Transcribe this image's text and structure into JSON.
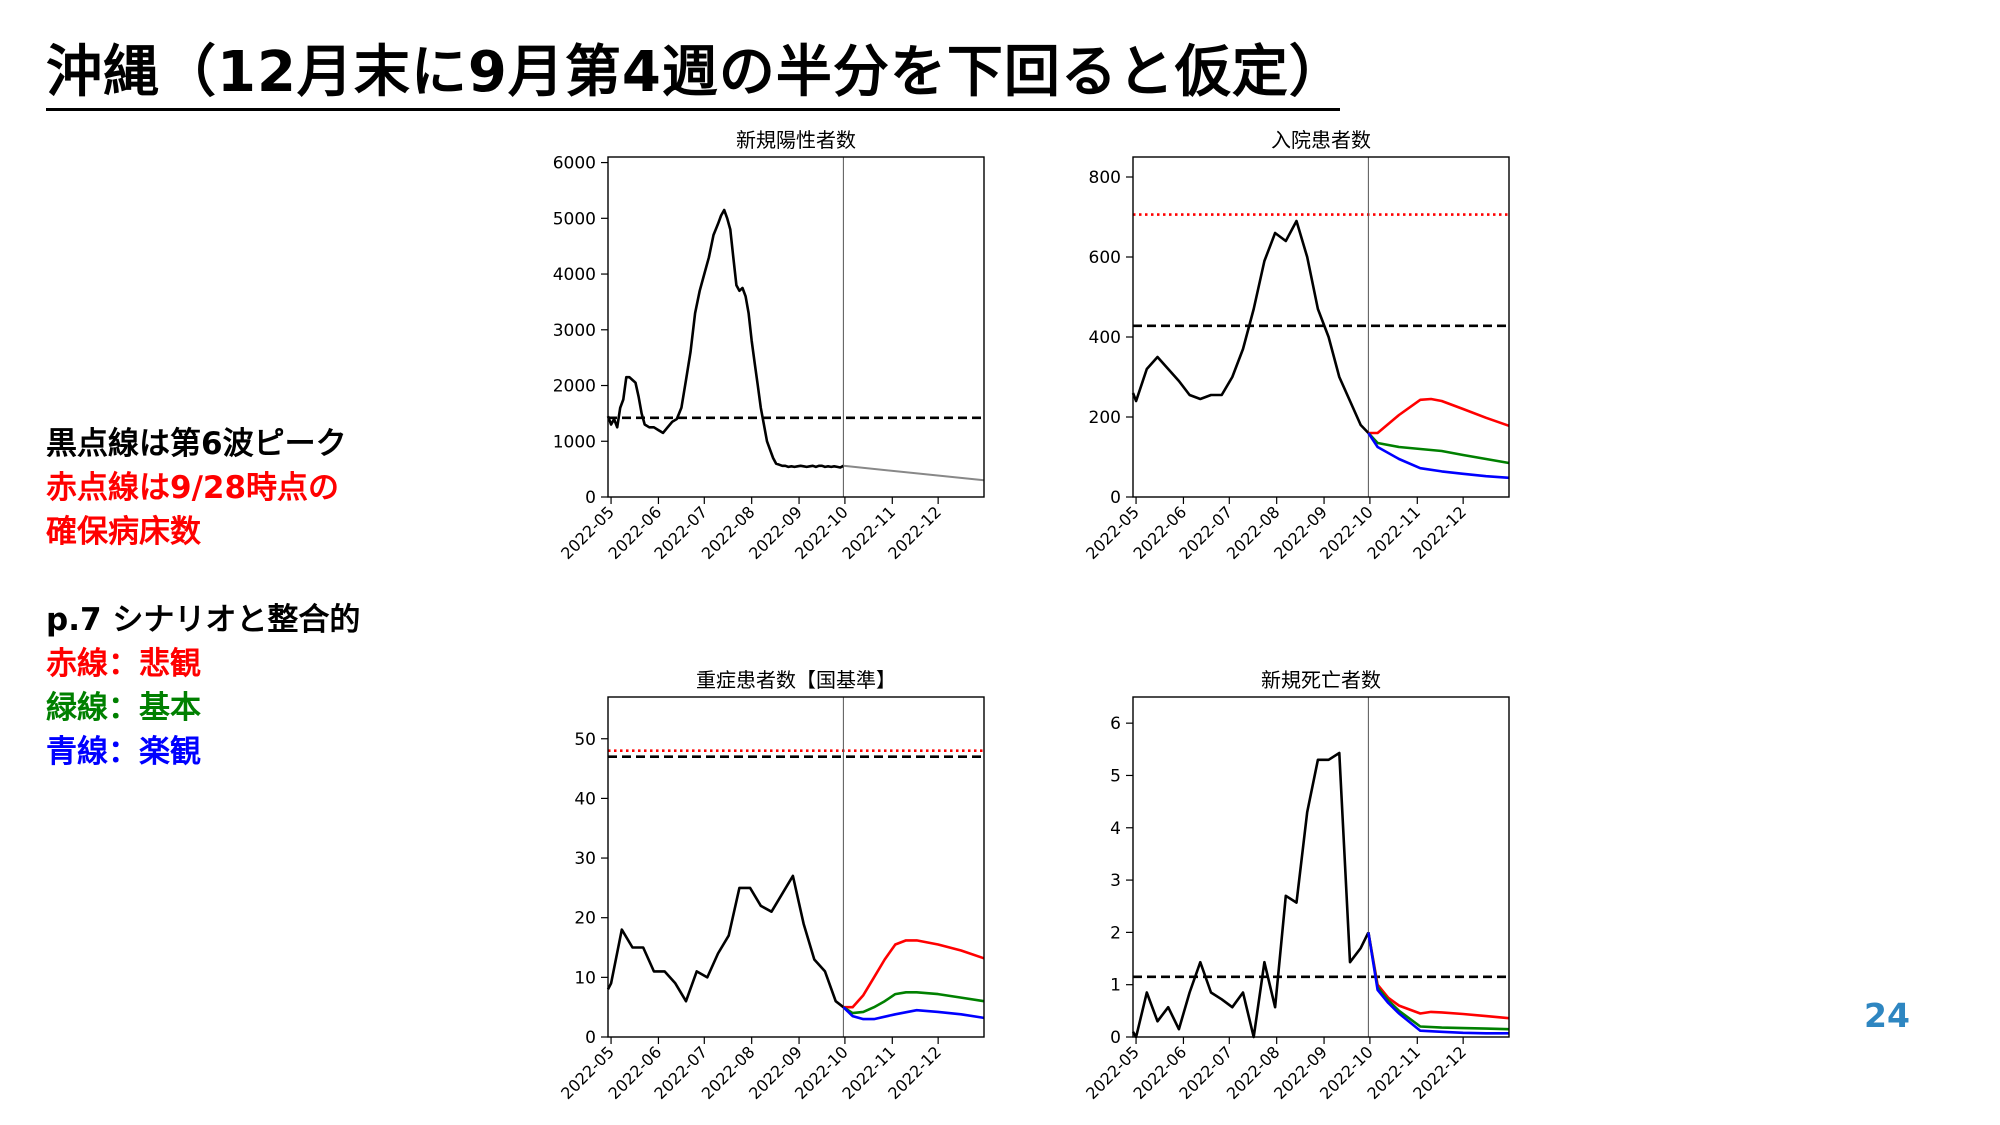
{
  "title": "沖縄（12月末に9月第4週の半分を下回ると仮定）",
  "notes": [
    {
      "text": "黒点線は第6波ピーク",
      "color": "#000000"
    },
    {
      "text": "赤点線は9/28時点の",
      "color": "#ff0000"
    },
    {
      "text": "確保病床数",
      "color": "#ff0000"
    },
    {
      "text": "p.7 シナリオと整合的",
      "color": "#000000"
    },
    {
      "text": "赤線：悲観",
      "color": "#ff0000"
    },
    {
      "text": "緑線：基本",
      "color": "#008000"
    },
    {
      "text": "青線：楽観",
      "color": "#0000ff"
    }
  ],
  "page_number": "24",
  "colors": {
    "observed": "#000000",
    "projection": "#888888",
    "pessimistic": "#ff0000",
    "base": "#008000",
    "optimistic": "#0000ff",
    "threshold_peak": "#000000",
    "threshold_beds": "#ff0000"
  },
  "chart_data": [
    {
      "type": "line",
      "title": "新規陽性者数",
      "x_tick_labels": [
        "2022-05",
        "2022-06",
        "2022-07",
        "2022-08",
        "2022-09",
        "2022-10",
        "2022-11",
        "2022-12"
      ],
      "x_ticks": [
        0,
        31,
        61,
        92,
        123,
        153,
        184,
        214
      ],
      "xlim": [
        -2,
        244
      ],
      "ylim": [
        0,
        6100
      ],
      "y_ticks": [
        0,
        1000,
        2000,
        3000,
        4000,
        5000,
        6000
      ],
      "vline_x": 152,
      "hlines": [
        {
          "name": "第6波ピーク",
          "y": 1420,
          "style": "dashed",
          "color": "#000000"
        }
      ],
      "series": [
        {
          "role": "observed",
          "x": [
            -2,
            0,
            2,
            4,
            6,
            8,
            10,
            12,
            14,
            16,
            18,
            20,
            22,
            25,
            28,
            31,
            34,
            37,
            40,
            43,
            46,
            49,
            52,
            55,
            58,
            61,
            64,
            67,
            70,
            72,
            74,
            76,
            78,
            80,
            82,
            84,
            86,
            88,
            90,
            92,
            94,
            96,
            98,
            100,
            102,
            104,
            106,
            108,
            110,
            112,
            114,
            116,
            118,
            120,
            122,
            124,
            126,
            128,
            130,
            132,
            134,
            136,
            138,
            140,
            142,
            144,
            146,
            148,
            150,
            152
          ],
          "y": [
            1450,
            1300,
            1400,
            1250,
            1600,
            1750,
            2150,
            2150,
            2100,
            2050,
            1800,
            1500,
            1300,
            1250,
            1250,
            1200,
            1150,
            1250,
            1350,
            1400,
            1600,
            2100,
            2600,
            3300,
            3700,
            4000,
            4300,
            4700,
            4900,
            5050,
            5150,
            5000,
            4800,
            4300,
            3800,
            3700,
            3750,
            3600,
            3300,
            2800,
            2400,
            2000,
            1600,
            1300,
            1000,
            850,
            700,
            600,
            580,
            560,
            560,
            540,
            550,
            540,
            550,
            560,
            550,
            540,
            550,
            560,
            540,
            560,
            560,
            540,
            550,
            540,
            550,
            540,
            530,
            560
          ]
        },
        {
          "role": "projection",
          "x": [
            152,
            244
          ],
          "y": [
            560,
            300
          ]
        }
      ]
    },
    {
      "type": "line",
      "title": "入院患者数",
      "x_tick_labels": [
        "2022-05",
        "2022-06",
        "2022-07",
        "2022-08",
        "2022-09",
        "2022-10",
        "2022-11",
        "2022-12"
      ],
      "x_ticks": [
        0,
        31,
        61,
        92,
        123,
        153,
        184,
        214
      ],
      "xlim": [
        -2,
        244
      ],
      "ylim": [
        0,
        850
      ],
      "y_ticks": [
        0,
        200,
        400,
        600,
        800
      ],
      "vline_x": 152,
      "hlines": [
        {
          "name": "9/28時点の確保病床数",
          "y": 706,
          "style": "dotted",
          "color": "#ff0000"
        },
        {
          "name": "第6波ピーク",
          "y": 428,
          "style": "dashed",
          "color": "#000000"
        }
      ],
      "series": [
        {
          "role": "observed",
          "x": [
            -2,
            0,
            7,
            14,
            21,
            28,
            35,
            42,
            49,
            56,
            63,
            70,
            77,
            84,
            91,
            98,
            105,
            112,
            119,
            126,
            133,
            140,
            147,
            152
          ],
          "y": [
            260,
            240,
            320,
            350,
            320,
            290,
            255,
            245,
            255,
            255,
            300,
            370,
            470,
            590,
            660,
            640,
            690,
            600,
            470,
            400,
            300,
            240,
            180,
            160
          ]
        },
        {
          "role": "pessimistic",
          "x": [
            152,
            158,
            172,
            186,
            193,
            200,
            214,
            229,
            244
          ],
          "y": [
            160,
            160,
            205,
            243,
            245,
            240,
            220,
            198,
            178
          ]
        },
        {
          "role": "base",
          "x": [
            152,
            158,
            172,
            186,
            200,
            214,
            229,
            244
          ],
          "y": [
            160,
            135,
            125,
            120,
            115,
            105,
            95,
            85
          ]
        },
        {
          "role": "optimistic",
          "x": [
            152,
            158,
            172,
            186,
            200,
            214,
            229,
            244
          ],
          "y": [
            160,
            125,
            95,
            72,
            64,
            58,
            52,
            48
          ]
        }
      ]
    },
    {
      "type": "line",
      "title": "重症患者数【国基準】",
      "x_tick_labels": [
        "2022-05",
        "2022-06",
        "2022-07",
        "2022-08",
        "2022-09",
        "2022-10",
        "2022-11",
        "2022-12"
      ],
      "x_ticks": [
        0,
        31,
        61,
        92,
        123,
        153,
        184,
        214
      ],
      "xlim": [
        -2,
        244
      ],
      "ylim": [
        0,
        57
      ],
      "y_ticks": [
        0,
        10,
        20,
        30,
        40,
        50
      ],
      "vline_x": 152,
      "hlines": [
        {
          "name": "9/28時点の確保病床数",
          "y": 48,
          "style": "dotted",
          "color": "#ff0000"
        },
        {
          "name": "第6波ピーク",
          "y": 47,
          "style": "dashed",
          "color": "#000000"
        }
      ],
      "series": [
        {
          "role": "observed",
          "x": [
            -2,
            0,
            7,
            14,
            21,
            28,
            35,
            42,
            49,
            56,
            63,
            70,
            77,
            84,
            91,
            98,
            105,
            112,
            119,
            126,
            133,
            140,
            147,
            152
          ],
          "y": [
            8,
            9,
            18,
            15,
            15,
            11,
            11,
            9,
            6,
            11,
            10,
            14,
            17,
            25,
            25,
            22,
            21,
            24,
            27,
            19,
            13,
            11,
            6,
            5
          ]
        },
        {
          "role": "pessimistic",
          "x": [
            152,
            158,
            165,
            172,
            179,
            186,
            193,
            200,
            214,
            229,
            244
          ],
          "y": [
            5,
            5,
            7,
            10,
            13,
            15.5,
            16.2,
            16.2,
            15.5,
            14.5,
            13.2
          ]
        },
        {
          "role": "base",
          "x": [
            152,
            158,
            165,
            172,
            179,
            186,
            193,
            200,
            214,
            229,
            244
          ],
          "y": [
            5,
            4,
            4.2,
            5,
            6,
            7.2,
            7.5,
            7.5,
            7.2,
            6.6,
            6
          ]
        },
        {
          "role": "optimistic",
          "x": [
            152,
            158,
            165,
            172,
            186,
            200,
            214,
            229,
            244
          ],
          "y": [
            5,
            3.5,
            3,
            3,
            3.8,
            4.5,
            4.2,
            3.8,
            3.2
          ]
        }
      ]
    },
    {
      "type": "line",
      "title": "新規死亡者数",
      "x_tick_labels": [
        "2022-05",
        "2022-06",
        "2022-07",
        "2022-08",
        "2022-09",
        "2022-10",
        "2022-11",
        "2022-12"
      ],
      "x_ticks": [
        0,
        31,
        61,
        92,
        123,
        153,
        184,
        214
      ],
      "xlim": [
        -2,
        244
      ],
      "ylim": [
        0,
        6.5
      ],
      "y_ticks": [
        0,
        1,
        2,
        3,
        4,
        5,
        6
      ],
      "vline_x": 152,
      "hlines": [
        {
          "name": "第6波ピーク",
          "y": 1.15,
          "style": "dashed",
          "color": "#000000"
        }
      ],
      "series": [
        {
          "role": "observed",
          "x": [
            -2,
            0,
            7,
            14,
            21,
            28,
            35,
            42,
            49,
            56,
            63,
            70,
            77,
            84,
            91,
            98,
            105,
            112,
            119,
            126,
            133,
            140,
            147,
            152
          ],
          "y": [
            0.1,
            0,
            0.85,
            0.3,
            0.57,
            0.15,
            0.85,
            1.43,
            0.85,
            0.72,
            0.57,
            0.85,
            0,
            1.43,
            0.57,
            2.7,
            2.57,
            4.3,
            5.3,
            5.3,
            5.43,
            1.43,
            1.7,
            2
          ]
        },
        {
          "role": "pessimistic",
          "x": [
            152,
            158,
            165,
            172,
            186,
            193,
            200,
            214,
            229,
            244
          ],
          "y": [
            2,
            1,
            0.75,
            0.6,
            0.45,
            0.48,
            0.47,
            0.44,
            0.4,
            0.36
          ]
        },
        {
          "role": "base",
          "x": [
            152,
            158,
            165,
            172,
            186,
            200,
            214,
            229,
            244
          ],
          "y": [
            2,
            0.95,
            0.7,
            0.5,
            0.2,
            0.18,
            0.17,
            0.16,
            0.15
          ]
        },
        {
          "role": "optimistic",
          "x": [
            152,
            158,
            165,
            172,
            186,
            200,
            214,
            229,
            244
          ],
          "y": [
            2,
            0.9,
            0.65,
            0.45,
            0.12,
            0.1,
            0.08,
            0.07,
            0.07
          ]
        }
      ]
    }
  ]
}
